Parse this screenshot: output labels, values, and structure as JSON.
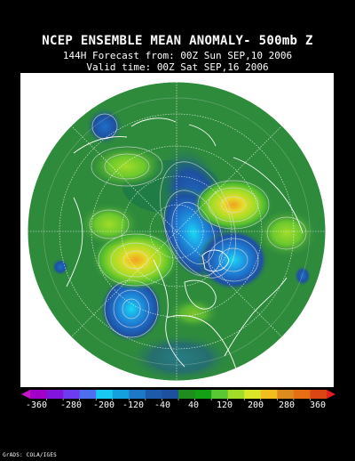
{
  "header": {
    "title": "NCEP ENSEMBLE MEAN ANOMALY- 500mb Z",
    "forecast_line": "144H Forecast from: 00Z Sun SEP,10 2006",
    "valid_line": "Valid time: 00Z Sat SEP,16 2006"
  },
  "map": {
    "projection": "north polar stereographic",
    "background_color": "#2e8b3c",
    "anomaly_features": [
      {
        "sign": "positive",
        "region": "Kamchatka / northwest Pacific",
        "peak": 180
      },
      {
        "sign": "positive",
        "region": "Scandinavia",
        "peak": 220
      },
      {
        "sign": "positive",
        "region": "Gulf of Alaska",
        "peak": 260
      },
      {
        "sign": "positive",
        "region": "Hudson Bay",
        "peak": 120
      },
      {
        "sign": "negative",
        "region": "Arctic Ocean / Siberian coast",
        "peak": -200
      },
      {
        "sign": "negative",
        "region": "Western Russia",
        "peak": -180
      },
      {
        "sign": "negative",
        "region": "Pacific Northwest",
        "peak": -200
      }
    ]
  },
  "colorbar": {
    "labels": [
      "-360",
      "-280",
      "-200",
      "-120",
      "-40",
      "40",
      "120",
      "200",
      "280",
      "360"
    ],
    "colors": [
      "#a000c8",
      "#8214dc",
      "#6e3cf0",
      "#4e6ef0",
      "#18c8f0",
      "#14a0dc",
      "#1e78c8",
      "#1e5aaa",
      "#1e50a0",
      "#1e8c1e",
      "#14a014",
      "#5ac832",
      "#a0dc28",
      "#dce628",
      "#f0be1e",
      "#dc8c1e",
      "#e66e14",
      "#dc4614"
    ],
    "min_arrow_color": "#c814c8",
    "max_arrow_color": "#e61e1e"
  },
  "credit": "GrADS: COLA/IGES"
}
